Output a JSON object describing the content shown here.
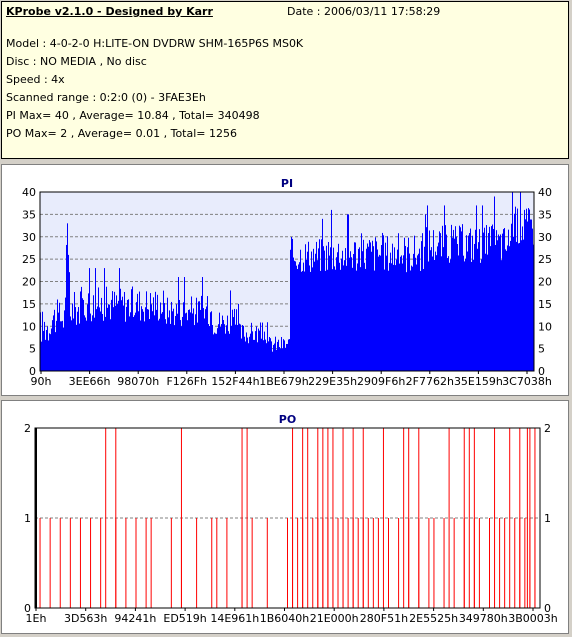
{
  "header": {
    "title": "KProbe v2.1.0 - Designed by Karr",
    "date": "Date : 2006/03/11 17:58:29",
    "lines": [
      "Model : 4-0-2-0 H:LITE-ON DVDRW SHM-165P6S MS0K",
      "Disc : NO MEDIA , No disc",
      "Speed : 4x",
      "Scanned range : 0:2:0 (0) - 3FAE3Eh",
      "PI Max= 40 , Average= 10.84 , Total= 340498",
      "PO Max= 2 , Average= 0.01 , Total= 1256"
    ]
  },
  "colors": {
    "pi": "#0000ff",
    "po": "#ff0000",
    "plot_bg": "#e8ecfc",
    "grid": "#808080"
  },
  "chart_data": [
    {
      "type": "bar",
      "title": "PI",
      "ylim": [
        0,
        40
      ],
      "yticks": [
        0,
        5,
        10,
        15,
        20,
        25,
        30,
        35,
        40
      ],
      "xtick_labels": [
        "90h",
        "3EE66h",
        "98070h",
        "F126Fh",
        "152F44h",
        "1BE679h",
        "229E35h",
        "2909F6h",
        "2F7762h",
        "35E159h",
        "3C7038h"
      ],
      "grid": true,
      "segments": [
        {
          "x_from": 0.0,
          "x_to": 0.02,
          "low": 6,
          "high": 14
        },
        {
          "x_from": 0.02,
          "x_to": 0.05,
          "low": 8,
          "high": 16
        },
        {
          "x_from": 0.05,
          "x_to": 0.06,
          "low": 12,
          "high": 32
        },
        {
          "x_from": 0.06,
          "x_to": 0.08,
          "low": 10,
          "high": 18
        },
        {
          "x_from": 0.08,
          "x_to": 0.25,
          "low": 11,
          "high": 19
        },
        {
          "x_from": 0.25,
          "x_to": 0.35,
          "low": 10,
          "high": 17
        },
        {
          "x_from": 0.35,
          "x_to": 0.4,
          "low": 8,
          "high": 14
        },
        {
          "x_from": 0.4,
          "x_to": 0.46,
          "low": 6,
          "high": 11
        },
        {
          "x_from": 0.46,
          "x_to": 0.505,
          "low": 4,
          "high": 8
        },
        {
          "x_from": 0.505,
          "x_to": 0.58,
          "low": 22,
          "high": 30
        },
        {
          "x_from": 0.58,
          "x_to": 0.78,
          "low": 22,
          "high": 31
        },
        {
          "x_from": 0.78,
          "x_to": 0.95,
          "low": 24,
          "high": 33
        },
        {
          "x_from": 0.95,
          "x_to": 1.0,
          "low": 28,
          "high": 37
        }
      ],
      "peaks": [
        {
          "x": 0.055,
          "value": 33
        },
        {
          "x": 0.59,
          "value": 36
        },
        {
          "x": 0.78,
          "value": 35
        },
        {
          "x": 0.92,
          "value": 39
        },
        {
          "x": 0.98,
          "value": 36
        }
      ]
    },
    {
      "type": "bar",
      "title": "PO",
      "ylim": [
        0,
        2
      ],
      "yticks": [
        0,
        1,
        2
      ],
      "xtick_labels": [
        "1Eh",
        "3D563h",
        "94241h",
        "ED519h",
        "14E961h",
        "1B6040h",
        "21E000h",
        "280F51h",
        "2E5525h",
        "349780h",
        "3B0003h"
      ],
      "grid": true,
      "spikes_value_1": [
        0.01,
        0.03,
        0.05,
        0.07,
        0.09,
        0.11,
        0.13,
        0.16,
        0.18,
        0.2,
        0.22,
        0.23,
        0.27,
        0.29,
        0.32,
        0.35,
        0.36,
        0.38,
        0.41,
        0.43,
        0.46,
        0.5,
        0.51,
        0.52,
        0.53,
        0.55,
        0.56,
        0.57,
        0.58,
        0.59,
        0.6,
        0.61,
        0.62,
        0.63,
        0.64,
        0.65,
        0.66,
        0.67,
        0.68,
        0.7,
        0.72,
        0.74,
        0.76,
        0.78,
        0.79,
        0.81,
        0.83,
        0.85,
        0.87,
        0.88,
        0.9,
        0.92,
        0.93,
        0.95,
        0.96,
        0.97,
        0.98,
        0.99
      ],
      "spikes_value_2": [
        0.0,
        0.14,
        0.16,
        0.29,
        0.41,
        0.42,
        0.51,
        0.53,
        0.54,
        0.56,
        0.57,
        0.58,
        0.59,
        0.61,
        0.63,
        0.65,
        0.69,
        0.73,
        0.74,
        0.76,
        0.82,
        0.85,
        0.86,
        0.87,
        0.91,
        0.94,
        0.96,
        0.975,
        0.98,
        0.99
      ]
    }
  ]
}
